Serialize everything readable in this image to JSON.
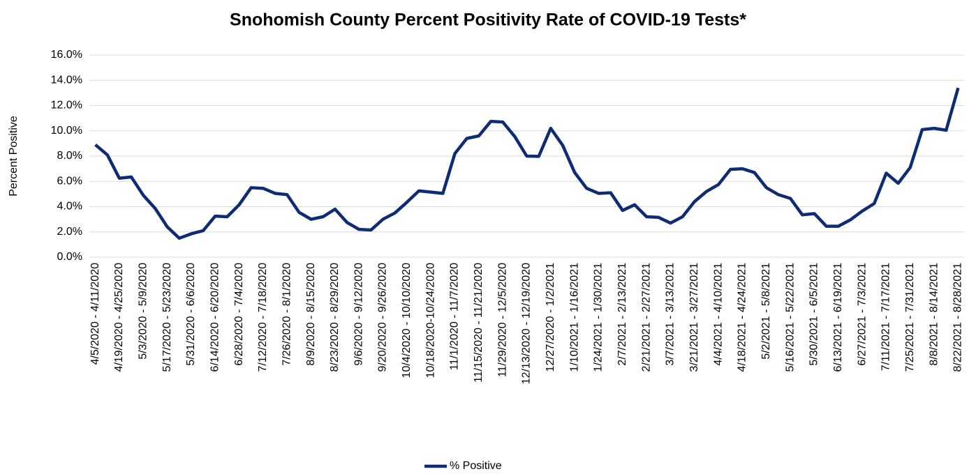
{
  "chart_data": {
    "type": "line",
    "title": "Snohomish County Percent Positivity Rate of COVID-19 Tests*",
    "y_label": "Percent Positive",
    "categories": [
      "4/5/2020 - 4/11/2020",
      null,
      "4/19/2020 - 4/25/2020",
      null,
      "5/3/2020 - 5/9/2020",
      null,
      "5/17/2020 - 5/23/2020",
      null,
      "5/31/2020 - 6/6/2020",
      null,
      "6/14/2020 - 6/20/2020",
      null,
      "6/28/2020 - 7/4/2020",
      null,
      "7/12/2020 - 7/18/2020",
      null,
      "7/26/2020 - 8/1/2020",
      null,
      "8/9/2020 - 8/15/2020",
      null,
      "8/23/2020 - 8/29/2020",
      null,
      "9/6/2020 - 9/12/2020",
      null,
      "9/20/2020 - 9/26/2020",
      null,
      "10/4/2020 - 10/10/2020",
      null,
      "10/18/2020-10/24/2020",
      null,
      "11/1/2020 - 11/7/2020",
      null,
      "11/15/2020 - 11/21/2020",
      null,
      "11/29/2020 - 12/5/2020",
      null,
      "12/13/2020 - 12/19/2020",
      null,
      "12/27/2020 - 1/2/2021",
      null,
      "1/10/2021 - 1/16/2021",
      null,
      "1/24/2021 - 1/30/2021",
      null,
      "2/7/2021 - 2/13/2021",
      null,
      "2/21/2021 - 2/27/2021",
      null,
      "3/7/2021 - 3/13/2021",
      null,
      "3/21/2021 - 3/27/2021",
      null,
      "4/4/2021 - 4/10/2021",
      null,
      "4/18/2021 - 4/24/2021",
      null,
      "5/2/2021 - 5/8/2021",
      null,
      "5/16/2021 - 5/22/2021",
      null,
      "5/30/2021 - 6/5/2021",
      null,
      "6/13/2021 - 6/19/2021",
      null,
      "6/27/2021 - 7/3/2021",
      null,
      "7/11/2021 - 7/17/2021",
      null,
      "7/25/2021 - 7/31/2021",
      null,
      "8/8/2021 - 8/14/2021",
      null,
      "8/22/2021 - 8/28/2021"
    ],
    "series": [
      {
        "name": "% Positive",
        "color": "#0f2b73",
        "values": [
          8.9,
          8.1,
          6.25,
          6.35,
          4.9,
          3.85,
          2.4,
          1.5,
          1.85,
          2.1,
          3.25,
          3.2,
          4.15,
          5.5,
          5.45,
          5.05,
          4.95,
          3.55,
          3.0,
          3.2,
          3.8,
          2.75,
          2.2,
          2.15,
          3.0,
          3.5,
          4.35,
          5.25,
          5.15,
          5.05,
          8.2,
          9.4,
          9.6,
          10.75,
          10.7,
          9.55,
          8.0,
          7.98,
          10.2,
          8.85,
          6.7,
          5.45,
          5.05,
          5.1,
          3.7,
          4.15,
          3.2,
          3.15,
          2.7,
          3.2,
          4.4,
          5.2,
          5.75,
          6.95,
          7.0,
          6.7,
          5.5,
          4.95,
          4.65,
          3.35,
          3.45,
          2.45,
          2.45,
          2.95,
          3.65,
          4.25,
          6.65,
          5.85,
          7.1,
          10.1,
          10.2,
          10.05,
          13.4
        ]
      }
    ],
    "ylim": [
      0,
      16
    ],
    "yticks": [
      {
        "value": 0,
        "label": "0.0%"
      },
      {
        "value": 2,
        "label": "2.0%"
      },
      {
        "value": 4,
        "label": "4.0%"
      },
      {
        "value": 6,
        "label": "6.0%"
      },
      {
        "value": 8,
        "label": "8.0%"
      },
      {
        "value": 10,
        "label": "10.0%"
      },
      {
        "value": 12,
        "label": "12.0%"
      },
      {
        "value": 14,
        "label": "14.0%"
      },
      {
        "value": 16,
        "label": "16.0%"
      }
    ],
    "grid": true,
    "legend": "bottom"
  }
}
